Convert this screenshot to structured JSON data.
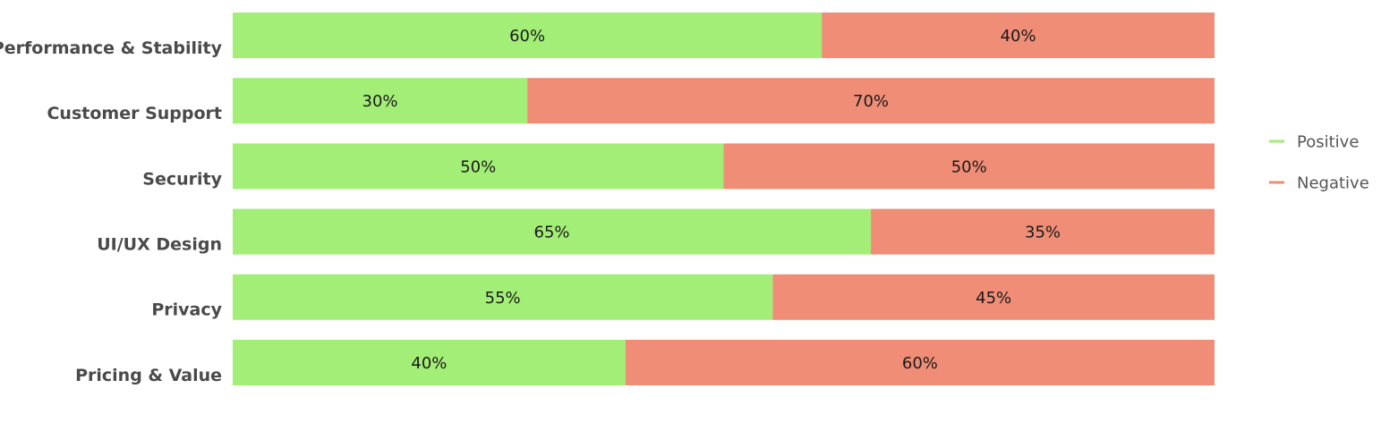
{
  "chart_data": {
    "type": "bar",
    "orientation": "horizontal",
    "stacked": true,
    "categories": [
      "Performance & Stability",
      "Customer Support",
      "Security",
      "UI/UX Design",
      "Privacy",
      "Pricing & Value"
    ],
    "series": [
      {
        "name": "Positive",
        "color": "#a3ee77",
        "values": [
          60,
          30,
          50,
          65,
          55,
          40
        ]
      },
      {
        "name": "Negative",
        "color": "#ef8d76",
        "values": [
          40,
          70,
          50,
          35,
          45,
          60
        ]
      }
    ],
    "value_suffix": "%",
    "xlim": [
      0,
      100
    ],
    "grid": false,
    "legend": {
      "position": "right"
    }
  }
}
